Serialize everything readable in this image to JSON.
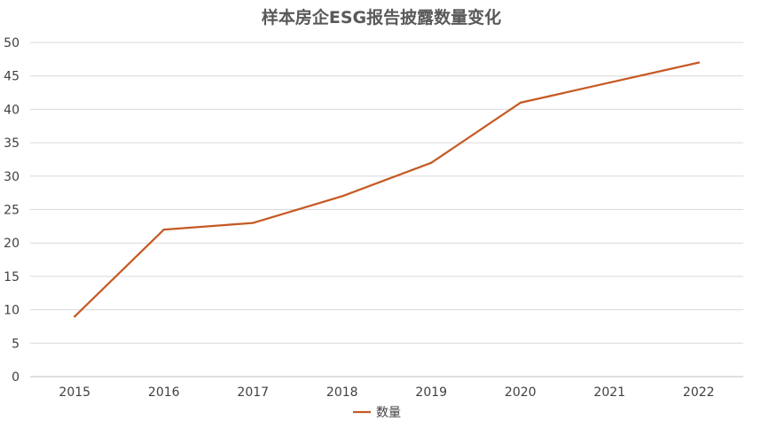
{
  "chart_data": {
    "type": "line",
    "title": "样本房企ESG报告披露数量变化",
    "xlabel": "",
    "ylabel": "",
    "categories": [
      "2015",
      "2016",
      "2017",
      "2018",
      "2019",
      "2020",
      "2021",
      "2022"
    ],
    "series": [
      {
        "name": "数量",
        "values": [
          9,
          22,
          23,
          27,
          32,
          41,
          44,
          47
        ]
      }
    ],
    "ylim": [
      0,
      50
    ],
    "y_ticks": [
      0,
      5,
      10,
      15,
      20,
      25,
      30,
      35,
      40,
      45,
      50
    ],
    "grid": true,
    "legend": "bottom",
    "colors": {
      "series": "#C65A24",
      "grid": "#d9d9d9"
    }
  }
}
